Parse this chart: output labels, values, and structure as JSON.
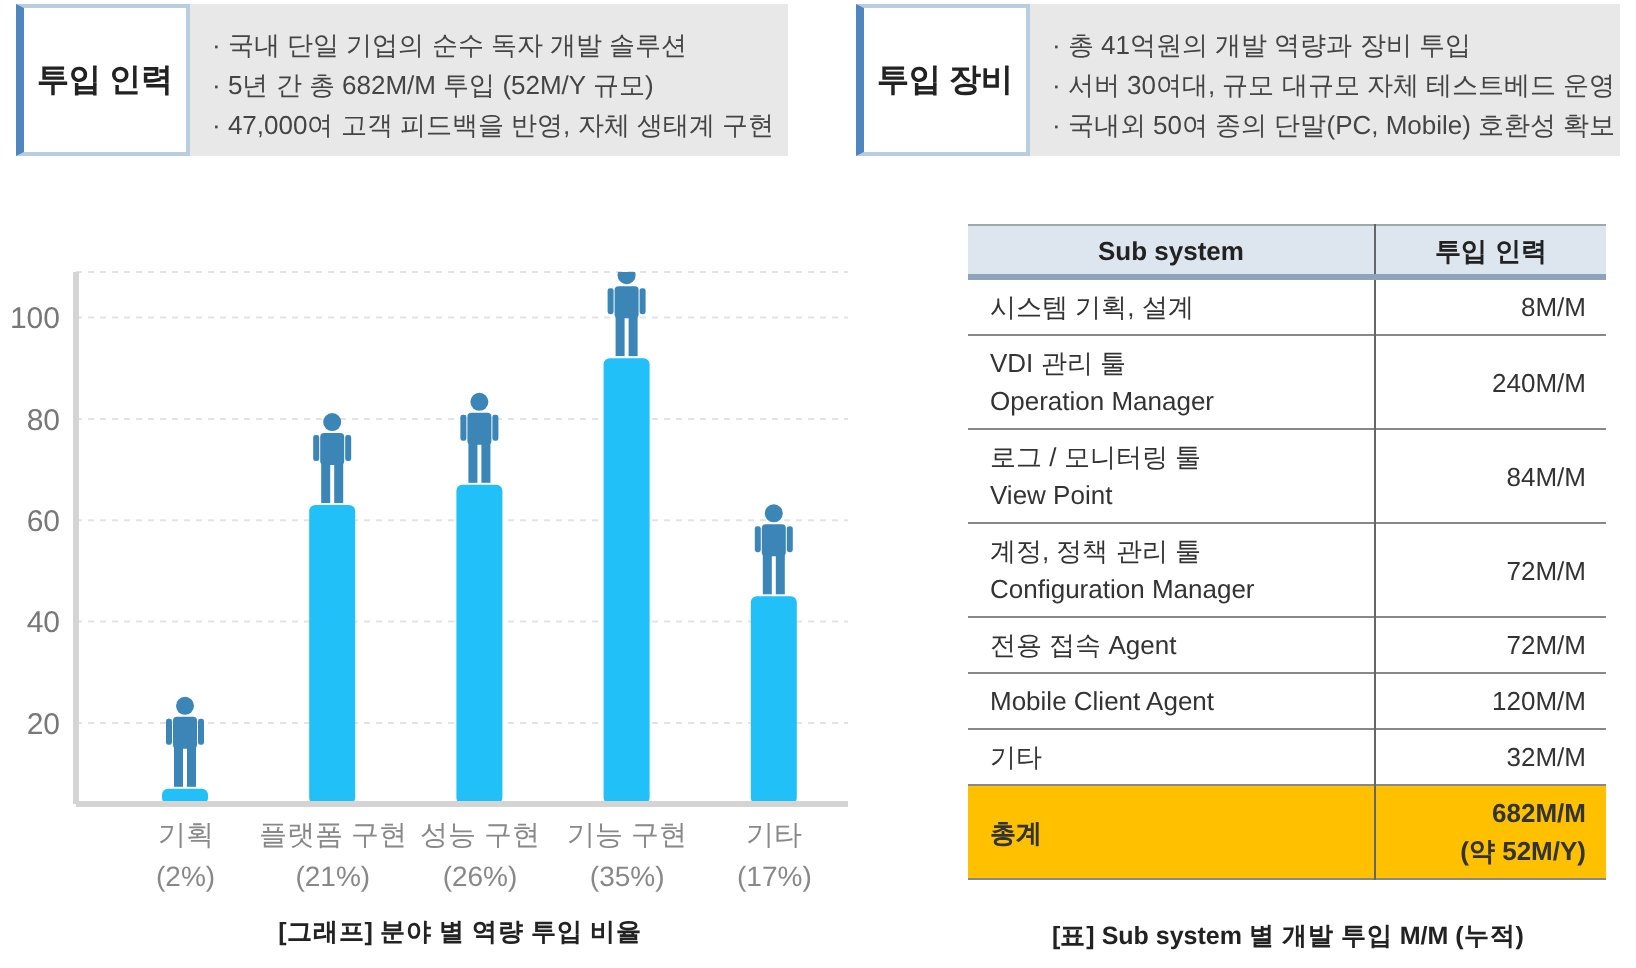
{
  "chart_data": [
    {
      "type": "other",
      "title": "투입 인력",
      "annotations": [
        "· 국내 단일 기업의 순수 독자 개발 솔루션",
        "· 5년 간 총 682M/M 투입 (52M/Y 규모)",
        "· 47,000여 고객 피드백을 반영, 자체 생태계 구현"
      ]
    },
    {
      "type": "other",
      "title": "투입 장비",
      "annotations": [
        "· 총 41억원의 개발 역량과 장비 투입",
        "· 서버 30여대, 규모 대규모 자체 테스트베드 운영",
        "· 국내외 50여 종의 단말(PC, Mobile) 호환성 확보"
      ]
    },
    {
      "type": "bar",
      "title": "[그래프] 분야 별 역량 투입 비율",
      "categories": [
        "기획\n(2%)",
        "플랫폼 구현\n(21%)",
        "성능 구현\n(26%)",
        "기능 구현\n(35%)",
        "기타\n(17%)"
      ],
      "values": [
        7,
        63,
        67,
        92,
        45
      ],
      "color": "#22c0f8",
      "ylim": [
        4,
        109
      ],
      "yticks": [
        20,
        40,
        60,
        80,
        100
      ],
      "grid": "y"
    },
    {
      "type": "other",
      "title": "[표] Sub system 별 개발 투입 M/M (누적)",
      "xlabel": "Sub system",
      "ylabel": "투입 인력",
      "categories": [
        "시스템 기획, 설계",
        "VDI 관리 툴\nOperation Manager",
        "로그 / 모니터링 툴\nView Point",
        "계정, 정책 관리 툴\nConfiguration Manager",
        "전용 접속 Agent",
        "Mobile Client Agent",
        "기타",
        "총계"
      ],
      "value_labels": [
        "8M/M",
        "240M/M",
        "84M/M",
        "72M/M",
        "72M/M",
        "120M/M",
        "32M/M",
        "682M/M\n(약 52M/Y)"
      ],
      "colors": [
        null,
        null,
        null,
        null,
        null,
        null,
        null,
        "#ffc000"
      ]
    }
  ]
}
